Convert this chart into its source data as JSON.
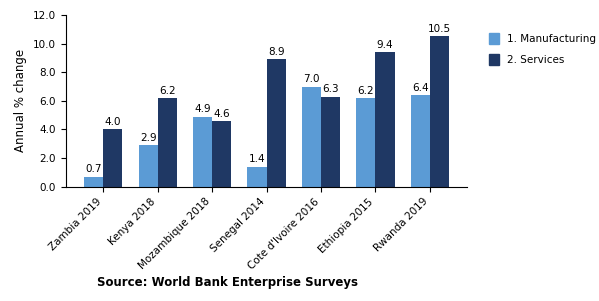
{
  "countries": [
    "Zambia 2019",
    "Kenya 2018",
    "Mozambique 2018",
    "Senegal 2014",
    "Cote d'Ivoire 2016",
    "Ethiopia 2015",
    "Rwanda 2019"
  ],
  "manufacturing": [
    0.7,
    2.9,
    4.9,
    1.4,
    7.0,
    6.2,
    6.4
  ],
  "services": [
    4.0,
    6.2,
    4.6,
    8.9,
    6.3,
    9.4,
    10.5
  ],
  "manufacturing_color": "#5b9bd5",
  "services_color": "#1f3864",
  "ylabel": "Annual % change",
  "source": "Source: World Bank Enterprise Surveys",
  "ylim": [
    0,
    12.0
  ],
  "yticks": [
    0.0,
    2.0,
    4.0,
    6.0,
    8.0,
    10.0,
    12.0
  ],
  "legend_manufacturing": "1. Manufacturing",
  "legend_services": "2. Services",
  "bar_width": 0.35,
  "label_fontsize": 7.5,
  "tick_fontsize": 7.5,
  "ylabel_fontsize": 8.5,
  "source_fontsize": 8.5
}
